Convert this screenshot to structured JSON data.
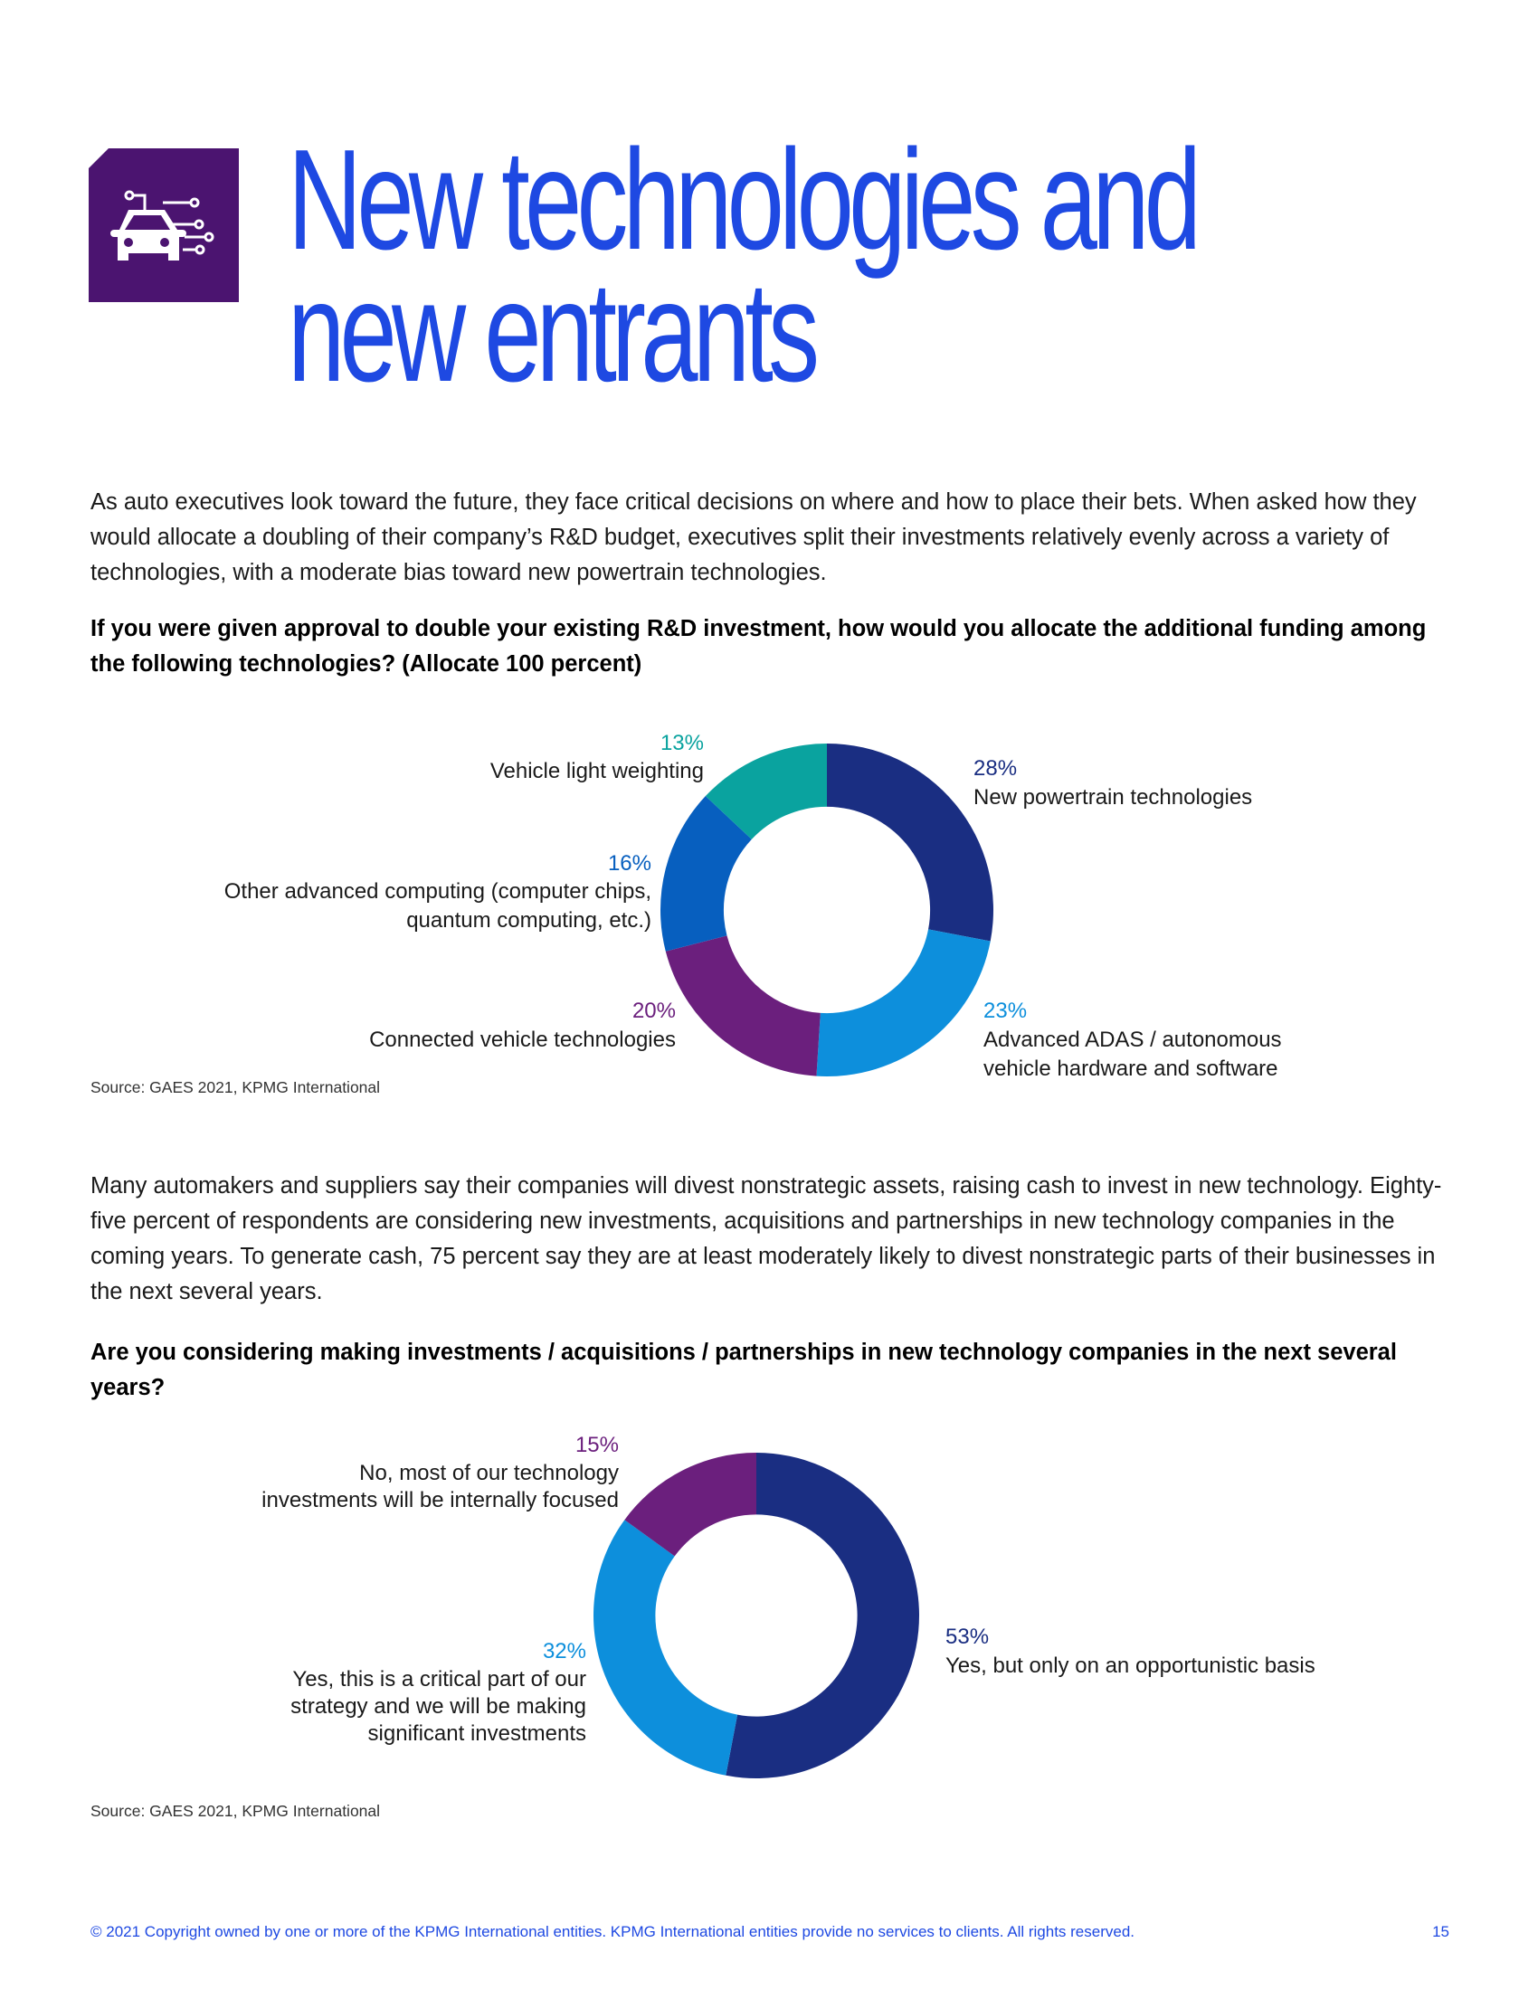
{
  "header": {
    "icon": "connected-car-icon",
    "title_line1": "New technologies and",
    "title_line2": "new entrants"
  },
  "intro": "As auto executives look toward the future, they face critical decisions on where and how to place their bets. When asked how they would allocate a doubling of their company’s R&D budget, executives split their investments relatively evenly across a variety of technologies, with a moderate bias toward new powertrain technologies.",
  "paragraph2": "Many automakers and suppliers say their companies will divest nonstrategic assets, raising cash to invest in new technology. Eighty-five percent of respondents are considering new investments, acquisitions and partnerships in new technology companies in the coming years. To generate cash, 75 percent say they are at least moderately likely to divest nonstrategic parts of their businesses in the next several years.",
  "chart_data": [
    {
      "type": "pie",
      "title": "If you were given approval to double your existing R&D investment, how would you allocate the additional funding among the following technologies? (Allocate 100 percent)",
      "source": "Source: GAES 2021, KPMG International",
      "slices": [
        {
          "label": "New powertrain technologies",
          "value": 28,
          "display": "28%",
          "color": "#1a2e82"
        },
        {
          "label": "Advanced ADAS / autonomous vehicle hardware and software",
          "label_line1": "Advanced ADAS / autonomous",
          "label_line2": "vehicle hardware and software",
          "value": 23,
          "display": "23%",
          "color": "#0d8fdc"
        },
        {
          "label": "Connected vehicle technologies",
          "value": 20,
          "display": "20%",
          "color": "#6b1f7d"
        },
        {
          "label": "Other advanced computing (computer chips, quantum computing, etc.)",
          "label_line1": "Other advanced computing (computer chips,",
          "label_line2": "quantum computing, etc.)",
          "value": 16,
          "display": "16%",
          "color": "#075fbf"
        },
        {
          "label": "Vehicle light weighting",
          "value": 13,
          "display": "13%",
          "color": "#0aa39f"
        }
      ]
    },
    {
      "type": "pie",
      "title": "Are you considering making investments / acquisitions / partnerships in new technology companies in the next several years?",
      "source": "Source: GAES 2021, KPMG International",
      "slices": [
        {
          "label": "Yes, but only on an opportunistic basis",
          "value": 53,
          "display": "53%",
          "color": "#1a2e82"
        },
        {
          "label": "Yes, this is a critical part of our strategy and we will be making significant investments",
          "label_line1": "Yes, this is a critical part of our",
          "label_line2": "strategy and we will be making",
          "label_line3": "significant investments",
          "value": 32,
          "display": "32%",
          "color": "#0d8fdc"
        },
        {
          "label": "No, most of our technology investments will be internally focused",
          "label_line1": "No, most of our technology",
          "label_line2": "investments will be internally focused",
          "value": 15,
          "display": "15%",
          "color": "#6b1f7d"
        }
      ]
    }
  ],
  "footer": {
    "copyright": "© 2021 Copyright owned by one or more of the KPMG International entities. KPMG International entities provide no services to clients. All rights reserved.",
    "page": "15"
  }
}
